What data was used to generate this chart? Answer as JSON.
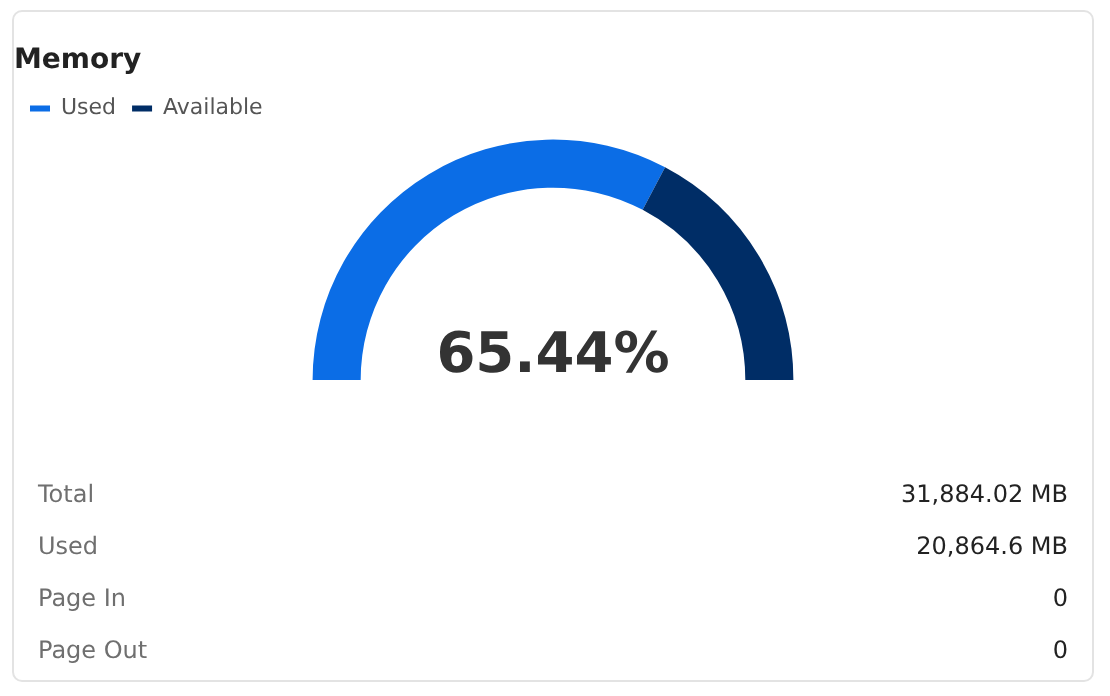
{
  "chart_data": {
    "type": "donut",
    "title": "Memory",
    "categories": [
      "Used",
      "Available"
    ],
    "values": [
      65.44,
      34.56
    ],
    "colors": [
      "#0b6de6",
      "#002d66"
    ],
    "legend": "top left",
    "annotations": [
      "65.44%",
      "Total",
      "31,884.02 MB",
      "Used",
      "20,864.6 MB",
      "Page In",
      "0",
      "Page Out",
      "0"
    ]
  }
}
